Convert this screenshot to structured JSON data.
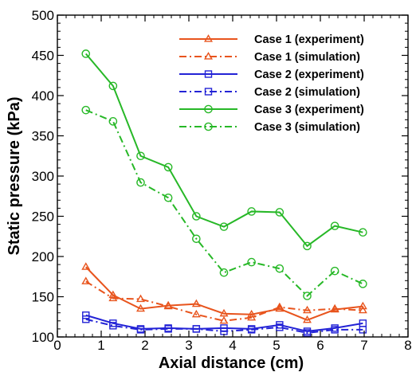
{
  "chart_data": {
    "type": "line",
    "title": "",
    "xlabel": "Axial distance (cm)",
    "ylabel": "Static pressure (kPa)",
    "xlim": [
      0,
      8
    ],
    "ylim": [
      100,
      500
    ],
    "x_ticks": [
      "0",
      "1",
      "2",
      "3",
      "4",
      "5",
      "6",
      "7",
      "8"
    ],
    "y_ticks": [
      "100",
      "150",
      "200",
      "250",
      "300",
      "350",
      "400",
      "450",
      "500"
    ],
    "grid": false,
    "legend_position": "top-right",
    "x": [
      0.65,
      1.27,
      1.9,
      2.53,
      3.17,
      3.8,
      4.43,
      5.07,
      5.7,
      6.33,
      6.97
    ],
    "series": [
      {
        "name": "Case 1 (experiment)",
        "color": "#e8541d",
        "dash": "solid",
        "marker": "triangle",
        "values": [
          187,
          152,
          135,
          139,
          141,
          129,
          128,
          135,
          121,
          134,
          138
        ]
      },
      {
        "name": "Case 1 (simulation)",
        "color": "#e8541d",
        "dash": "dashdot",
        "marker": "triangle",
        "values": [
          169,
          148,
          147,
          138,
          128,
          120,
          124,
          137,
          133,
          135,
          133
        ]
      },
      {
        "name": "Case 2 (experiment)",
        "color": "#2323d6",
        "dash": "solid",
        "marker": "square",
        "values": [
          127,
          117,
          110,
          111,
          110,
          111,
          110,
          115,
          107,
          111,
          117
        ]
      },
      {
        "name": "Case 2 (simulation)",
        "color": "#2323d6",
        "dash": "dashdot",
        "marker": "square",
        "values": [
          122,
          114,
          109,
          110,
          110,
          107,
          109,
          112,
          105,
          109,
          109
        ]
      },
      {
        "name": "Case 3 (experiment)",
        "color": "#27b827",
        "dash": "solid",
        "marker": "circle",
        "values": [
          452,
          412,
          325,
          311,
          250,
          237,
          256,
          255,
          213,
          238,
          230
        ]
      },
      {
        "name": "Case 3 (simulation)",
        "color": "#27b827",
        "dash": "dashdot",
        "marker": "circle",
        "values": [
          382,
          368,
          292,
          273,
          222,
          180,
          193,
          185,
          151,
          182,
          166
        ]
      }
    ]
  }
}
